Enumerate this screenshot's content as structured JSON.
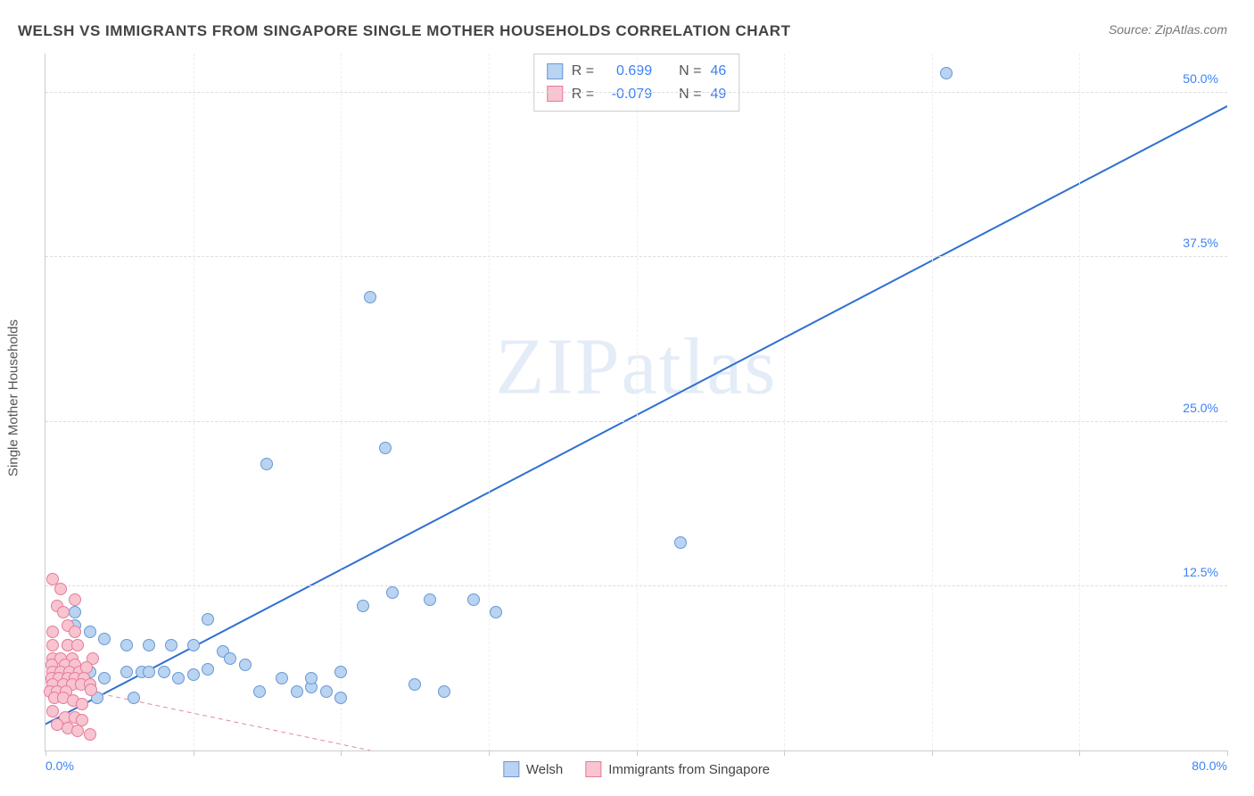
{
  "title": "WELSH VS IMMIGRANTS FROM SINGAPORE SINGLE MOTHER HOUSEHOLDS CORRELATION CHART",
  "source_label": "Source: ZipAtlas.com",
  "watermark": "ZIPatlas",
  "y_axis_label": "Single Mother Households",
  "chart": {
    "type": "scatter",
    "xlim": [
      0,
      80
    ],
    "ylim": [
      0,
      53
    ],
    "x_ticks": [
      0,
      10,
      20,
      30,
      40,
      50,
      60,
      70,
      80
    ],
    "x_tick_labels": {
      "0": "0.0%",
      "80": "80.0%"
    },
    "y_ticks": [
      12.5,
      25.0,
      37.5,
      50.0
    ],
    "y_tick_labels": [
      "12.5%",
      "25.0%",
      "37.5%",
      "50.0%"
    ],
    "background_color": "#ffffff",
    "grid_color": "#dddddd",
    "axis_color": "#cccccc",
    "tick_label_color": "#3b82f6",
    "marker_size": 14,
    "marker_border": 1
  },
  "series": [
    {
      "name": "Welsh",
      "r_value": "0.699",
      "n_value": "46",
      "fill": "#b9d3f0",
      "stroke": "#6799d6",
      "trend": {
        "x1": 0,
        "y1": 2,
        "x2": 80,
        "y2": 49,
        "dash": false,
        "width": 2,
        "color": "#2f6fd0"
      },
      "points": [
        [
          61,
          51.5
        ],
        [
          22,
          34.5
        ],
        [
          15,
          21.8
        ],
        [
          23,
          23
        ],
        [
          43,
          15.8
        ],
        [
          23.5,
          12
        ],
        [
          26,
          11.5
        ],
        [
          29,
          11.5
        ],
        [
          30.5,
          10.5
        ],
        [
          21.5,
          11
        ],
        [
          7,
          8
        ],
        [
          8.5,
          8
        ],
        [
          5.5,
          8
        ],
        [
          10,
          8
        ],
        [
          12,
          7.5
        ],
        [
          11,
          10
        ],
        [
          3,
          9
        ],
        [
          4,
          8.5
        ],
        [
          2,
          10.5
        ],
        [
          2,
          9.5
        ],
        [
          1.5,
          8
        ],
        [
          1.5,
          6.5
        ],
        [
          2,
          6
        ],
        [
          3,
          6
        ],
        [
          4,
          5.5
        ],
        [
          5.5,
          6
        ],
        [
          6.5,
          6
        ],
        [
          7,
          6
        ],
        [
          8,
          6
        ],
        [
          9,
          5.5
        ],
        [
          10,
          5.8
        ],
        [
          11,
          6.2
        ],
        [
          12.5,
          7
        ],
        [
          13.5,
          6.5
        ],
        [
          14.5,
          4.5
        ],
        [
          16,
          5.5
        ],
        [
          17,
          4.5
        ],
        [
          18,
          4.8
        ],
        [
          19,
          4.5
        ],
        [
          20,
          6
        ],
        [
          20,
          4
        ],
        [
          25,
          5
        ],
        [
          18,
          5.5
        ],
        [
          27,
          4.5
        ],
        [
          6,
          4
        ],
        [
          3.5,
          4
        ]
      ]
    },
    {
      "name": "Immigrants from Singapore",
      "r_value": "-0.079",
      "n_value": "49",
      "fill": "#f7c4d0",
      "stroke": "#e77b9a",
      "trend": {
        "x1": 0,
        "y1": 5.2,
        "x2": 22,
        "y2": 0,
        "dash": true,
        "width": 1,
        "color": "#e08a9f"
      },
      "points": [
        [
          0.5,
          13
        ],
        [
          1,
          12.3
        ],
        [
          0.8,
          11
        ],
        [
          2,
          11.5
        ],
        [
          1.2,
          10.5
        ],
        [
          1.5,
          9.5
        ],
        [
          0.5,
          9
        ],
        [
          2,
          9
        ],
        [
          0.5,
          8
        ],
        [
          1.5,
          8
        ],
        [
          2.2,
          8
        ],
        [
          0.5,
          7
        ],
        [
          1,
          7
        ],
        [
          1.8,
          7
        ],
        [
          0.4,
          6.5
        ],
        [
          1.3,
          6.5
        ],
        [
          2,
          6.5
        ],
        [
          0.5,
          6
        ],
        [
          1,
          6
        ],
        [
          1.6,
          6
        ],
        [
          2.3,
          6
        ],
        [
          3.2,
          7
        ],
        [
          2.8,
          6.3
        ],
        [
          0.4,
          5.5
        ],
        [
          0.9,
          5.5
        ],
        [
          1.5,
          5.5
        ],
        [
          2,
          5.5
        ],
        [
          2.6,
          5.5
        ],
        [
          0.5,
          5
        ],
        [
          1.2,
          5
        ],
        [
          1.8,
          5
        ],
        [
          2.4,
          5
        ],
        [
          3,
          5
        ],
        [
          0.3,
          4.5
        ],
        [
          0.8,
          4.5
        ],
        [
          1.4,
          4.5
        ],
        [
          3.1,
          4.6
        ],
        [
          0.6,
          4
        ],
        [
          1.2,
          4
        ],
        [
          1.9,
          3.8
        ],
        [
          2.5,
          3.5
        ],
        [
          0.5,
          3
        ],
        [
          1.3,
          2.5
        ],
        [
          2,
          2.5
        ],
        [
          2.5,
          2.3
        ],
        [
          0.8,
          2
        ],
        [
          1.5,
          1.7
        ],
        [
          2.2,
          1.5
        ],
        [
          3,
          1.2
        ]
      ]
    }
  ],
  "legend_top_labels": {
    "r": "R =",
    "n": "N ="
  },
  "legend_bottom": [
    {
      "label": "Welsh",
      "fill": "#b9d3f0",
      "stroke": "#6799d6"
    },
    {
      "label": "Immigrants from Singapore",
      "fill": "#f7c4d0",
      "stroke": "#e77b9a"
    }
  ]
}
